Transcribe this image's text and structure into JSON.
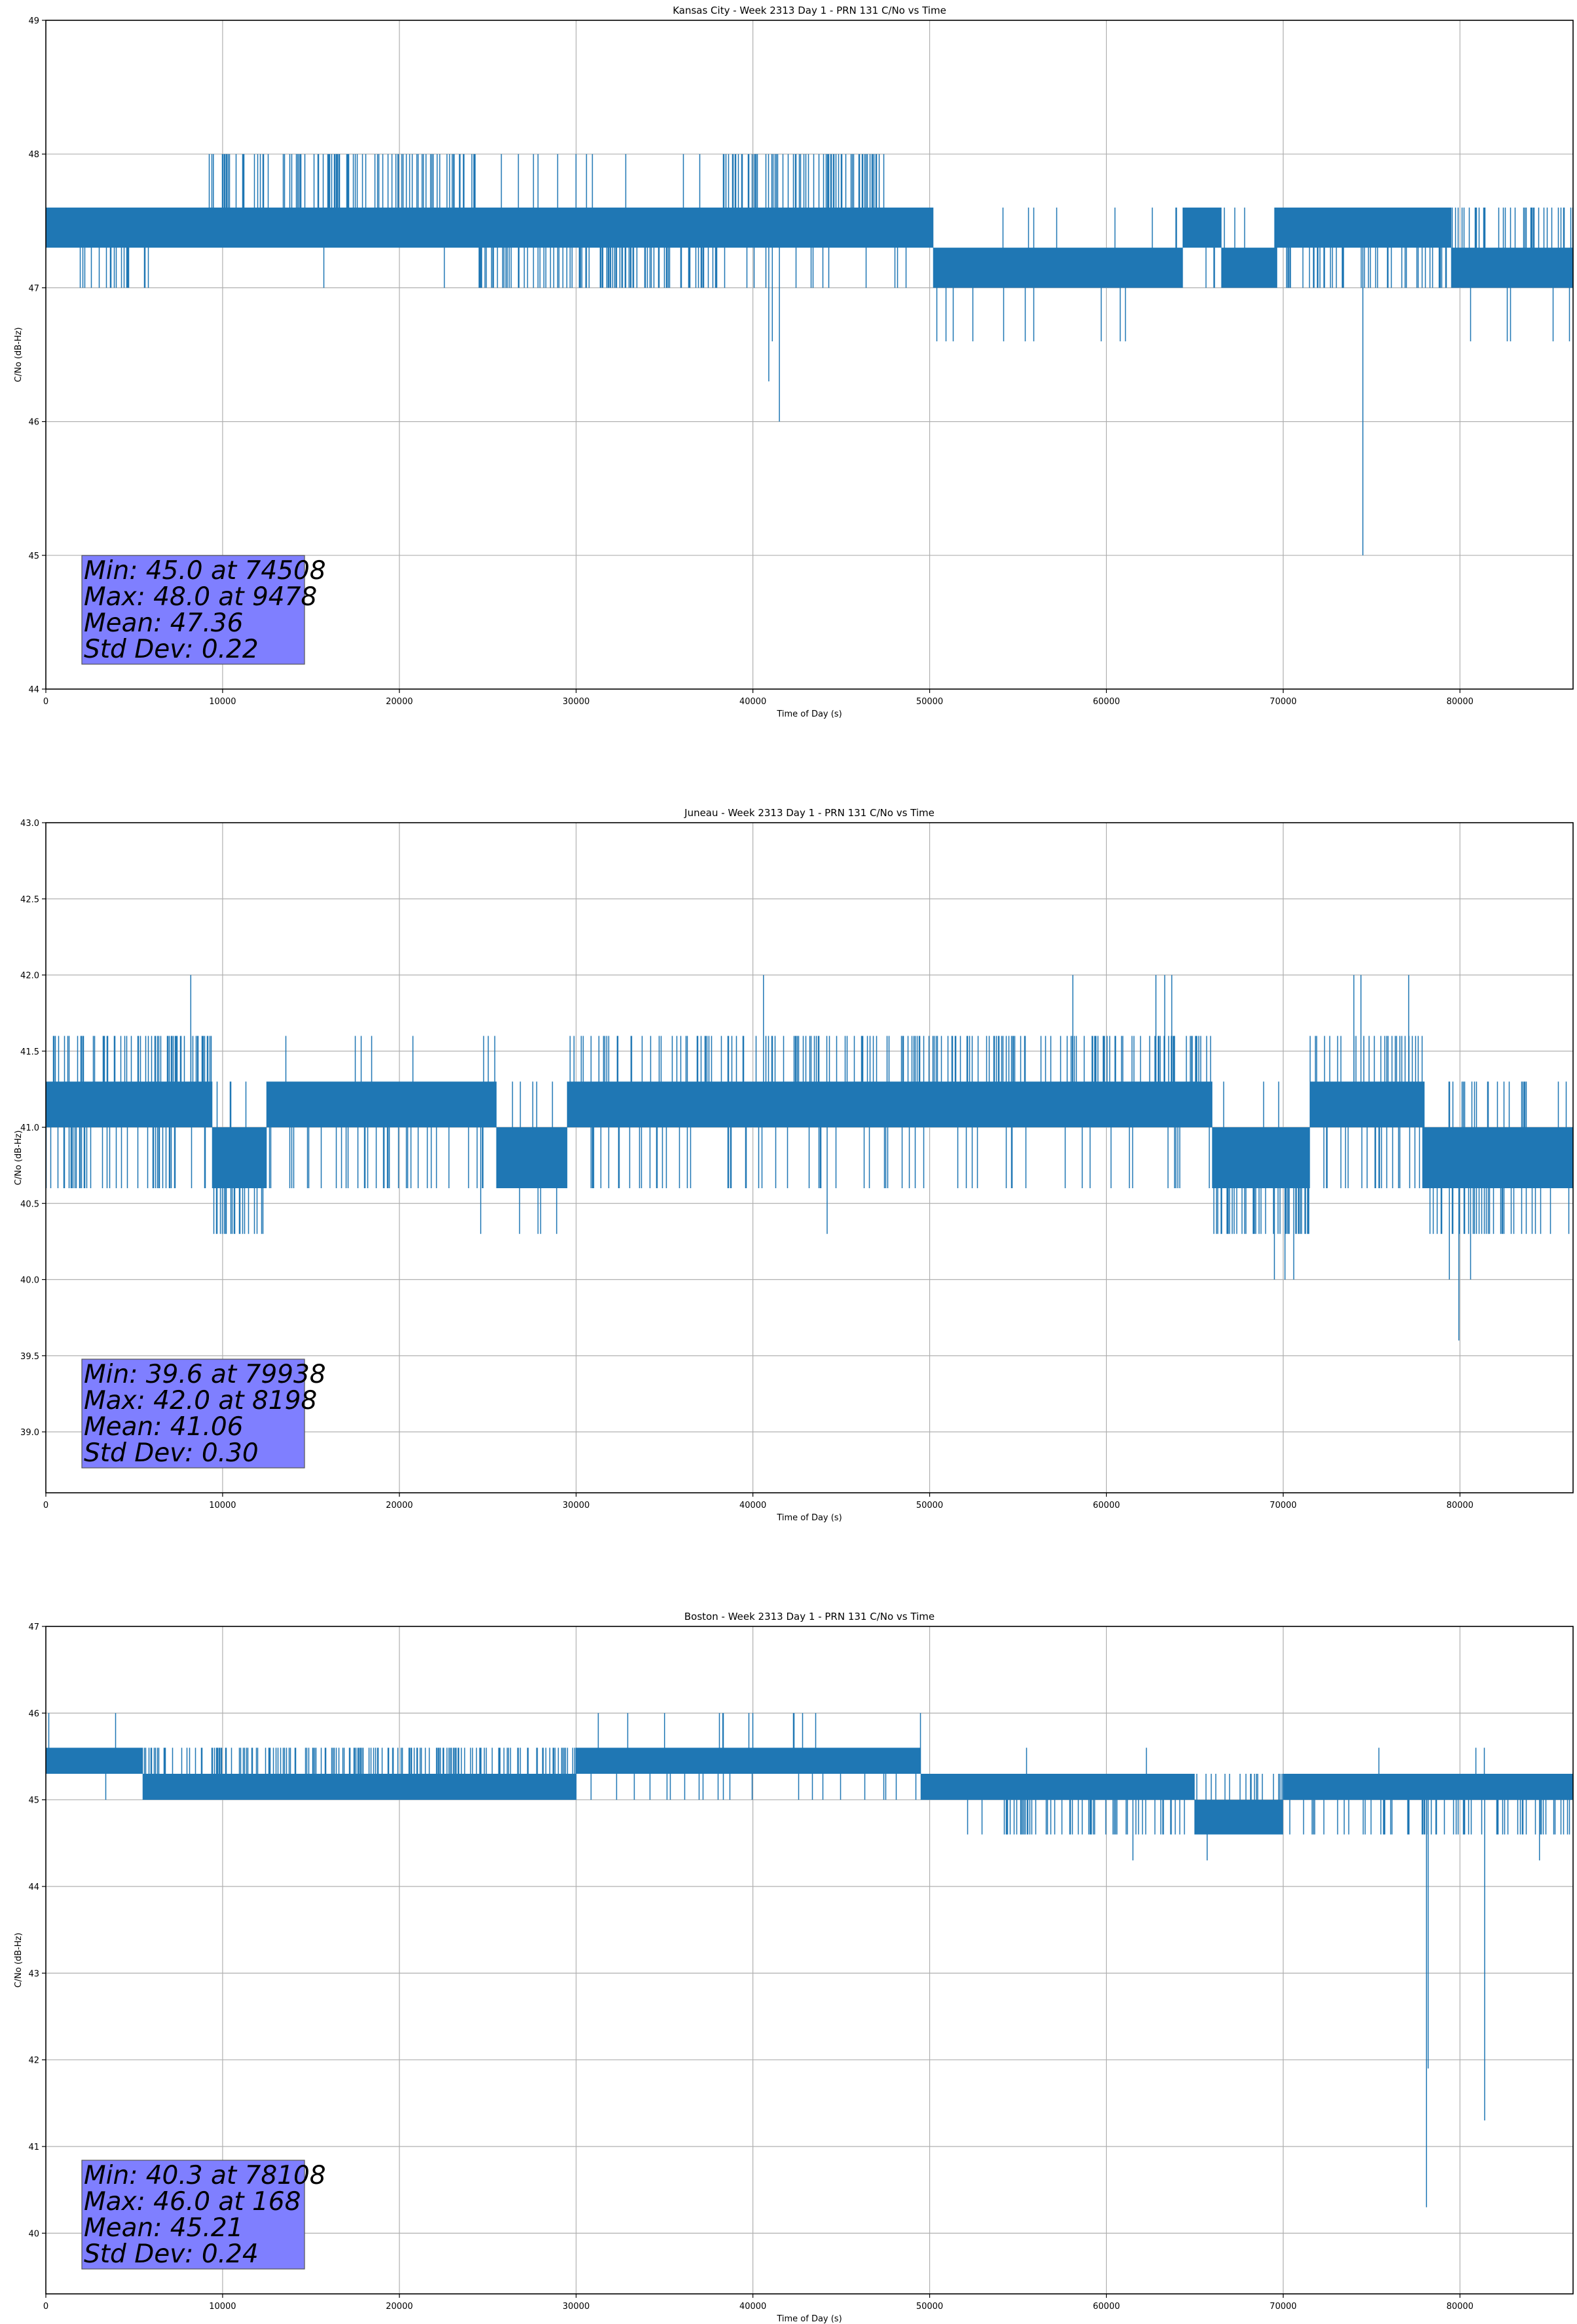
{
  "chart_data": [
    {
      "type": "line",
      "title": "Kansas City - Week 2313 Day 1 - PRN 131 C/No vs Time",
      "xlabel": "Time of Day (s)",
      "ylabel": "C/No (dB-Hz)",
      "xlim": [
        0,
        86400
      ],
      "ylim": [
        44,
        49
      ],
      "xticks": [
        0,
        10000,
        20000,
        30000,
        40000,
        50000,
        60000,
        70000,
        80000
      ],
      "yticks": [
        44,
        45,
        46,
        47,
        48,
        49
      ],
      "ytick_labels": [
        "44",
        "45",
        "46",
        "47",
        "48",
        "49"
      ],
      "grid": true,
      "line_color": "#1f77b4",
      "stats_box_color": "#8080ff",
      "stats": [
        "Min: 45.0 at 74508",
        "Max: 48.0 at 9478",
        "Mean: 47.36",
        "Std Dev: 0.22"
      ],
      "series": [
        {
          "segments": [
            {
              "x_start": 0,
              "x_end": 9000,
              "base": [
                47.3,
                47.6
              ],
              "dips": [
                47.0
              ],
              "dip_range": [
                1500,
                6700
              ],
              "spikes": [],
              "p_dip": 0.12,
              "p_spike": 0.0
            },
            {
              "x_start": 9000,
              "x_end": 24500,
              "base": [
                47.3,
                47.6
              ],
              "dips": [
                47.0
              ],
              "spikes": [
                48.0
              ],
              "p_dip": 0.01,
              "p_spike": 0.2
            },
            {
              "x_start": 24500,
              "x_end": 38000,
              "base": [
                47.3,
                47.6
              ],
              "dips": [
                47.0
              ],
              "spikes": [
                48.0
              ],
              "p_dip": 0.25,
              "p_spike": 0.02
            },
            {
              "x_start": 38000,
              "x_end": 47500,
              "base": [
                47.3,
                47.6
              ],
              "dips": [
                47.0
              ],
              "spikes": [
                48.0
              ],
              "p_dip": 0.05,
              "p_spike": 0.25
            },
            {
              "x_start": 47500,
              "x_end": 50200,
              "base": [
                47.3,
                47.6
              ],
              "dips": [
                47.0
              ],
              "spikes": [],
              "p_dip": 0.05,
              "p_spike": 0.0
            },
            {
              "x_start": 50200,
              "x_end": 64300,
              "base": [
                47.0,
                47.3
              ],
              "dips": [
                46.6
              ],
              "spikes": [
                47.6
              ],
              "p_dip": 0.04,
              "p_spike": 0.02
            },
            {
              "x_start": 64300,
              "x_end": 66500,
              "base": [
                47.3,
                47.6
              ],
              "dips": [
                47.0
              ],
              "spikes": [],
              "p_dip": 0.05,
              "p_spike": 0.0
            },
            {
              "x_start": 66500,
              "x_end": 69500,
              "base": [
                47.0,
                47.3
              ],
              "dips": [],
              "spikes": [
                47.6
              ],
              "p_dip": 0.0,
              "p_spike": 0.02
            },
            {
              "x_start": 69500,
              "x_end": 79500,
              "base": [
                47.3,
                47.6
              ],
              "dips": [
                47.0
              ],
              "spikes": [],
              "p_dip": 0.2,
              "p_spike": 0.0
            },
            {
              "x_start": 79500,
              "x_end": 86400,
              "base": [
                47.0,
                47.3
              ],
              "dips": [
                46.6
              ],
              "spikes": [
                47.6
              ],
              "p_dip": 0.02,
              "p_spike": 0.15
            }
          ],
          "events": [
            [
              40900,
              46.3
            ],
            [
              41100,
              46.6
            ],
            [
              41500,
              46.0
            ],
            [
              74508,
              45.0
            ],
            [
              9478,
              48.0
            ]
          ]
        }
      ]
    },
    {
      "type": "line",
      "title": "Juneau - Week 2313 Day 1 - PRN 131 C/No vs Time",
      "xlabel": "Time of Day (s)",
      "ylabel": "C/No (dB-Hz)",
      "xlim": [
        0,
        86400
      ],
      "ylim": [
        38.6,
        43.0
      ],
      "xticks": [
        0,
        10000,
        20000,
        30000,
        40000,
        50000,
        60000,
        70000,
        80000
      ],
      "yticks": [
        39.0,
        39.5,
        40.0,
        40.5,
        41.0,
        41.5,
        42.0,
        42.5,
        43.0
      ],
      "ytick_labels": [
        "39.0",
        "39.5",
        "40.0",
        "40.5",
        "41.0",
        "41.5",
        "42.0",
        "42.5",
        "43.0"
      ],
      "grid": true,
      "line_color": "#1f77b4",
      "stats_box_color": "#8080ff",
      "stats": [
        "Min: 39.6 at 79938",
        "Max: 42.0 at 8198",
        "Mean: 41.06",
        "Std Dev: 0.30"
      ],
      "series": [
        {
          "segments": [
            {
              "x_start": 0,
              "x_end": 7300,
              "base": [
                41.0,
                41.3
              ],
              "dips": [
                40.6
              ],
              "spikes": [
                41.6
              ],
              "p_dip": 0.2,
              "p_spike": 0.2
            },
            {
              "x_start": 7300,
              "x_end": 9400,
              "base": [
                41.0,
                41.3
              ],
              "dips": [
                40.6
              ],
              "spikes": [
                41.6
              ],
              "p_dip": 0.1,
              "p_spike": 0.4
            },
            {
              "x_start": 9400,
              "x_end": 12500,
              "base": [
                40.6,
                41.0
              ],
              "dips": [
                40.3
              ],
              "spikes": [
                41.3
              ],
              "p_dip": 0.25,
              "p_spike": 0.05
            },
            {
              "x_start": 12500,
              "x_end": 25500,
              "base": [
                41.0,
                41.3
              ],
              "dips": [
                40.6
              ],
              "spikes": [
                41.6
              ],
              "p_dip": 0.1,
              "p_spike": 0.04
            },
            {
              "x_start": 25500,
              "x_end": 29500,
              "base": [
                40.6,
                41.0
              ],
              "dips": [
                40.3
              ],
              "spikes": [
                41.3
              ],
              "p_dip": 0.01,
              "p_spike": 0.05
            },
            {
              "x_start": 29500,
              "x_end": 48000,
              "base": [
                41.0,
                41.3
              ],
              "dips": [
                40.6
              ],
              "spikes": [
                41.6
              ],
              "p_dip": 0.08,
              "p_spike": 0.15
            },
            {
              "x_start": 48000,
              "x_end": 66000,
              "base": [
                41.0,
                41.3
              ],
              "dips": [
                40.6
              ],
              "spikes": [
                41.6
              ],
              "p_dip": 0.08,
              "p_spike": 0.2
            },
            {
              "x_start": 66000,
              "x_end": 71500,
              "base": [
                40.6,
                41.0
              ],
              "dips": [
                40.3
              ],
              "spikes": [
                41.3
              ],
              "p_dip": 0.25,
              "p_spike": 0.05
            },
            {
              "x_start": 71500,
              "x_end": 78000,
              "base": [
                41.0,
                41.3
              ],
              "dips": [
                40.6
              ],
              "spikes": [
                41.6
              ],
              "p_dip": 0.15,
              "p_spike": 0.12
            },
            {
              "x_start": 78000,
              "x_end": 86400,
              "base": [
                40.6,
                41.0
              ],
              "dips": [
                40.3
              ],
              "spikes": [
                41.3
              ],
              "p_dip": 0.2,
              "p_spike": 0.08
            }
          ],
          "events": [
            [
              8198,
              42.0
            ],
            [
              40600,
              42.0
            ],
            [
              58100,
              42.0
            ],
            [
              62800,
              42.0
            ],
            [
              63300,
              42.0
            ],
            [
              63700,
              42.0
            ],
            [
              74000,
              42.0
            ],
            [
              74400,
              42.0
            ],
            [
              77100,
              42.0
            ],
            [
              69500,
              40.0
            ],
            [
              70100,
              40.0
            ],
            [
              70600,
              40.0
            ],
            [
              79400,
              40.0
            ],
            [
              79938,
              39.6
            ],
            [
              80600,
              40.0
            ],
            [
              44200,
              40.3
            ],
            [
              24600,
              40.3
            ],
            [
              26800,
              40.3
            ],
            [
              28900,
              40.3
            ]
          ]
        }
      ]
    },
    {
      "type": "line",
      "title": "Boston - Week 2313 Day 1 - PRN 131 C/No vs Time",
      "xlabel": "Time of Day (s)",
      "ylabel": "C/No (dB-Hz)",
      "xlim": [
        0,
        86400
      ],
      "ylim": [
        39.3,
        47
      ],
      "xticks": [
        0,
        10000,
        20000,
        30000,
        40000,
        50000,
        60000,
        70000,
        80000
      ],
      "yticks": [
        40,
        41,
        42,
        43,
        44,
        45,
        46,
        47
      ],
      "ytick_labels": [
        "40",
        "41",
        "42",
        "43",
        "44",
        "45",
        "46",
        "47"
      ],
      "grid": true,
      "line_color": "#1f77b4",
      "stats_box_color": "#8080ff",
      "stats": [
        "Min: 40.3 at 78108",
        "Max: 46.0 at 168",
        "Mean: 45.21",
        "Std Dev: 0.24"
      ],
      "series": [
        {
          "segments": [
            {
              "x_start": 0,
              "x_end": 5500,
              "base": [
                45.3,
                45.6
              ],
              "dips": [
                45.0
              ],
              "spikes": [
                46.0
              ],
              "p_dip": 0.02,
              "p_spike": 0.02
            },
            {
              "x_start": 5500,
              "x_end": 30000,
              "base": [
                45.0,
                45.3
              ],
              "dips": [],
              "spikes": [
                45.6
              ],
              "p_dip": 0.0,
              "p_spike": 0.25
            },
            {
              "x_start": 30000,
              "x_end": 49500,
              "base": [
                45.3,
                45.6
              ],
              "dips": [
                45.0
              ],
              "spikes": [
                46.0
              ],
              "p_dip": 0.05,
              "p_spike": 0.02
            },
            {
              "x_start": 49500,
              "x_end": 54000,
              "base": [
                45.0,
                45.3
              ],
              "dips": [
                44.6
              ],
              "spikes": [],
              "p_dip": 0.02,
              "p_spike": 0.0
            },
            {
              "x_start": 54000,
              "x_end": 65000,
              "base": [
                45.0,
                45.3
              ],
              "dips": [
                44.6
              ],
              "spikes": [
                45.6
              ],
              "p_dip": 0.15,
              "p_spike": 0.01
            },
            {
              "x_start": 65000,
              "x_end": 70000,
              "base": [
                44.6,
                45.0
              ],
              "dips": [],
              "spikes": [
                45.3
              ],
              "p_dip": 0.0,
              "p_spike": 0.15
            },
            {
              "x_start": 70000,
              "x_end": 86400,
              "base": [
                45.0,
                45.3
              ],
              "dips": [
                44.6
              ],
              "spikes": [
                45.6
              ],
              "p_dip": 0.15,
              "p_spike": 0.01
            }
          ],
          "events": [
            [
              168,
              46.0
            ],
            [
              35000,
              46.0
            ],
            [
              38300,
              46.0
            ],
            [
              61500,
              44.3
            ],
            [
              65700,
              44.3
            ],
            [
              78108,
              40.3
            ],
            [
              78200,
              41.9
            ],
            [
              81400,
              41.3
            ],
            [
              80900,
              45.6
            ],
            [
              84500,
              44.3
            ]
          ]
        }
      ]
    }
  ]
}
